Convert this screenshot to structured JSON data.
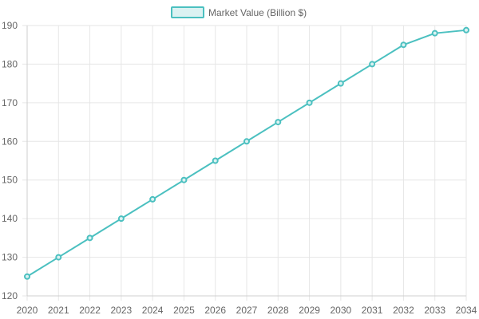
{
  "chart_data": {
    "type": "line",
    "x": [
      "2020",
      "2021",
      "2022",
      "2023",
      "2024",
      "2025",
      "2026",
      "2027",
      "2028",
      "2029",
      "2030",
      "2031",
      "2032",
      "2033",
      "2034"
    ],
    "series": [
      {
        "name": "Market Value (Billion $)",
        "values": [
          125,
          130,
          135,
          140,
          145,
          150,
          155,
          160,
          165,
          170,
          175,
          180,
          185,
          188,
          188.8
        ],
        "color": "#4bc0c0",
        "fill": "#dbf2f2"
      }
    ],
    "ylim": [
      120,
      190
    ],
    "yticks": [
      "120",
      "130",
      "140",
      "150",
      "160",
      "170",
      "180",
      "190"
    ],
    "grid": true,
    "legend": "top-center",
    "title": "",
    "xlabel": "",
    "ylabel": ""
  }
}
